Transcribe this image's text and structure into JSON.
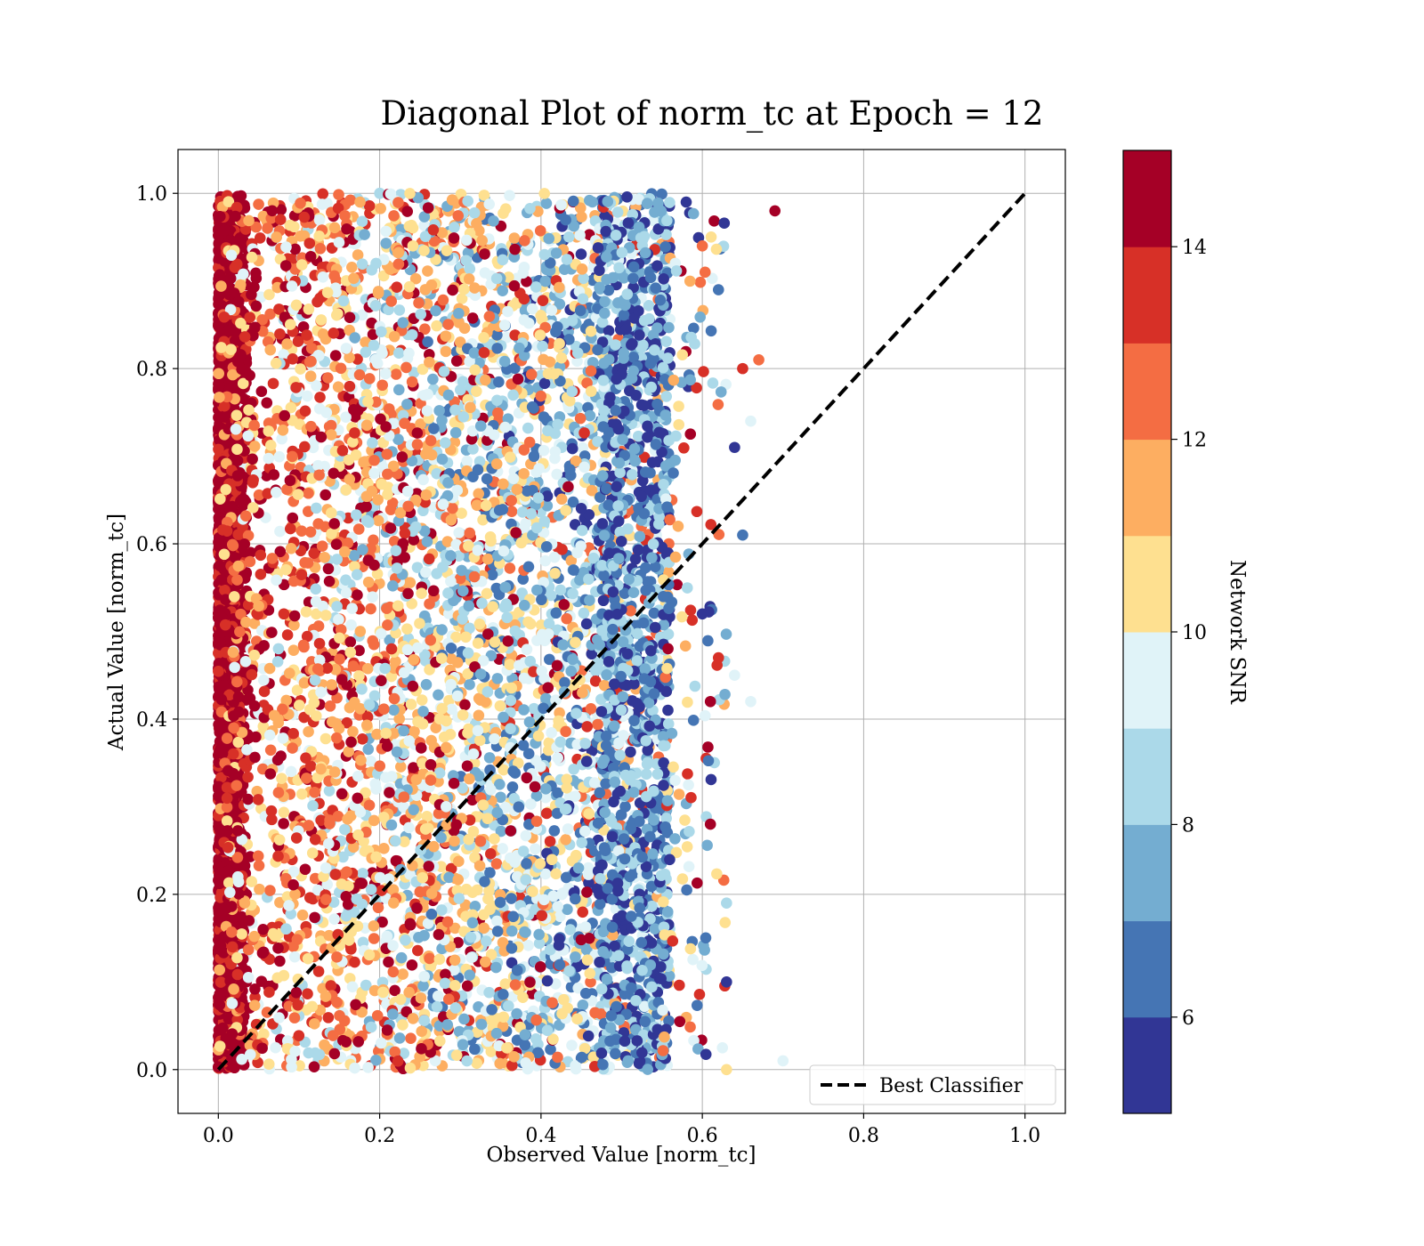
{
  "chart_data": {
    "type": "scatter",
    "title": "Diagonal Plot of norm_tc at Epoch = 12",
    "xlabel": "Observed Value [norm_tc]",
    "ylabel": "Actual Value [norm_tc]",
    "xlim": [
      -0.05,
      1.05
    ],
    "ylim": [
      -0.05,
      1.05
    ],
    "xticks": [
      "0.0",
      "0.2",
      "0.4",
      "0.6",
      "0.8",
      "1.0"
    ],
    "yticks": [
      "0.0",
      "0.2",
      "0.4",
      "0.6",
      "0.8",
      "1.0"
    ],
    "grid": true,
    "legend": {
      "placement": "lower-right",
      "entries": [
        "Best Classifier"
      ]
    },
    "reference_line": {
      "name": "Best Classifier",
      "style": "dashed",
      "color": "#000000",
      "x": [
        0.0,
        1.0
      ],
      "y": [
        0.0,
        1.0
      ]
    },
    "point_distribution": {
      "x_range": [
        0.0,
        0.7
      ],
      "y_range": [
        0.0,
        1.0
      ],
      "note_visible": "dense band at x≈0.0–0.03 dominated by high SNR"
    },
    "sample_points": [
      {
        "x": 0.69,
        "y": 0.98,
        "snr": 14
      },
      {
        "x": 0.67,
        "y": 0.81,
        "snr": 12
      },
      {
        "x": 0.65,
        "y": 0.8,
        "snr": 13
      },
      {
        "x": 0.66,
        "y": 0.74,
        "snr": 9
      },
      {
        "x": 0.64,
        "y": 0.71,
        "snr": 5
      },
      {
        "x": 0.65,
        "y": 0.61,
        "snr": 6
      },
      {
        "x": 0.64,
        "y": 0.45,
        "snr": 9
      },
      {
        "x": 0.66,
        "y": 0.42,
        "snr": 9
      },
      {
        "x": 0.7,
        "y": 0.01,
        "snr": 9
      },
      {
        "x": 0.62,
        "y": 0.89,
        "snr": 6
      },
      {
        "x": 0.62,
        "y": 0.47,
        "snr": 13
      },
      {
        "x": 0.61,
        "y": 0.28,
        "snr": 14
      },
      {
        "x": 0.63,
        "y": 0.19,
        "snr": 8
      },
      {
        "x": 0.63,
        "y": 0.1,
        "snr": 5
      },
      {
        "x": 0.63,
        "y": 0.0,
        "snr": 10
      },
      {
        "x": 0.6,
        "y": 0.94,
        "snr": 12
      },
      {
        "x": 0.58,
        "y": 0.99,
        "snr": 5
      },
      {
        "x": 0.57,
        "y": 0.62,
        "snr": 11
      },
      {
        "x": 0.6,
        "y": 0.52,
        "snr": 5
      },
      {
        "x": 0.61,
        "y": 0.42,
        "snr": 14
      }
    ],
    "colorbar": {
      "label": "Network SNR",
      "range": [
        5,
        15
      ],
      "ticks": [
        "6",
        "8",
        "10",
        "12",
        "14"
      ],
      "bins": [
        5,
        6,
        7,
        8,
        9,
        10,
        11,
        12,
        13,
        14,
        15
      ],
      "colors": [
        "#313695",
        "#4575b4",
        "#74add1",
        "#abd9e9",
        "#e0f3f8",
        "#fee090",
        "#fdae61",
        "#f46d43",
        "#d73027",
        "#a50026"
      ]
    }
  }
}
